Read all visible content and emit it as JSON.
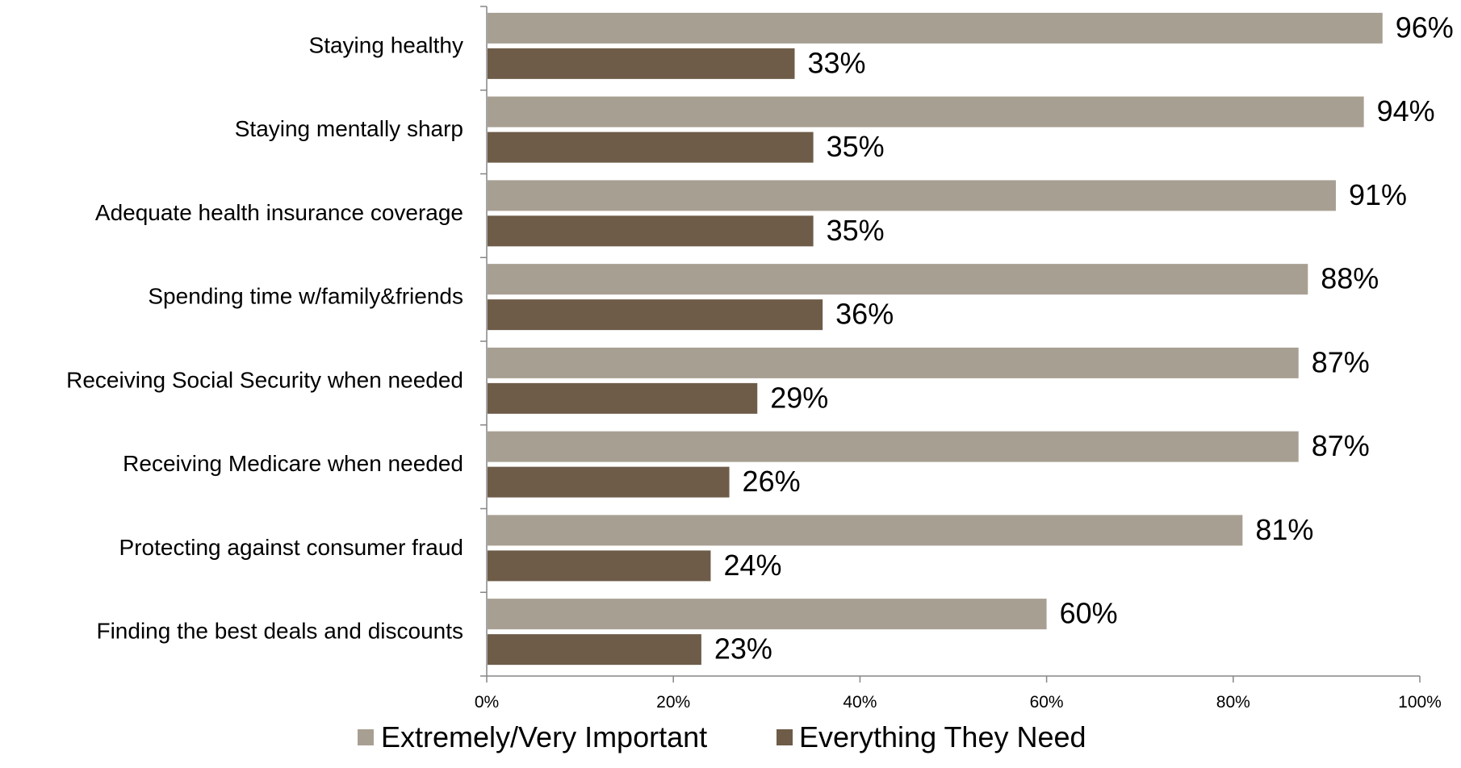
{
  "chart_data": {
    "type": "bar",
    "orientation": "horizontal",
    "title": "",
    "xlabel": "",
    "ylabel": "",
    "xlim": [
      0,
      100
    ],
    "x_ticks": [
      "0%",
      "20%",
      "40%",
      "60%",
      "80%",
      "100%"
    ],
    "x_tick_values": [
      0,
      20,
      40,
      60,
      80,
      100
    ],
    "grid": false,
    "legend_position": "bottom",
    "value_suffix": "%",
    "categories": [
      "Staying healthy",
      "Staying mentally sharp",
      "Adequate health insurance coverage",
      "Spending time w/family&friends",
      "Receiving Social Security when needed",
      "Receiving Medicare when needed",
      "Protecting against consumer fraud",
      "Finding the best deals and discounts"
    ],
    "series": [
      {
        "name": "Extremely/Very Important",
        "color": "#a89f93",
        "values": [
          96,
          94,
          91,
          88,
          87,
          87,
          81,
          60
        ]
      },
      {
        "name": "Everything They Need",
        "color": "#6e5c48",
        "values": [
          33,
          35,
          35,
          36,
          29,
          26,
          24,
          23
        ]
      }
    ]
  }
}
